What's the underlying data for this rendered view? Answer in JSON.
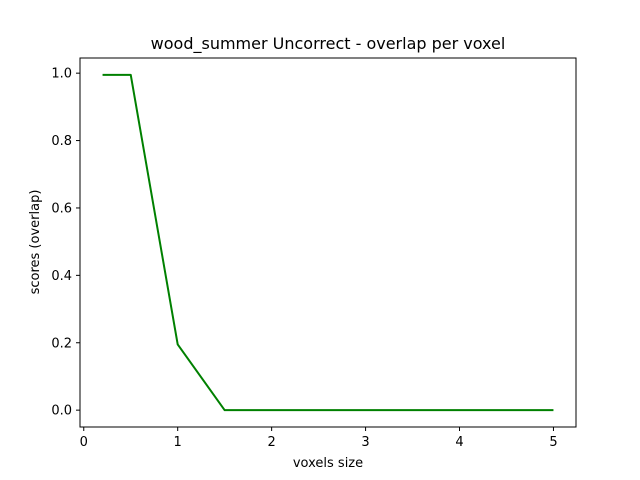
{
  "chart_data": {
    "type": "line",
    "title": "wood_summer Uncorrect - overlap per voxel",
    "xlabel": "voxels size",
    "ylabel": "scores (overlap)",
    "xlim": [
      -0.04,
      5.24
    ],
    "ylim": [
      -0.05,
      1.045
    ],
    "xticks": [
      0,
      1,
      2,
      3,
      4,
      5
    ],
    "yticks": [
      0.0,
      0.2,
      0.4,
      0.6,
      0.8,
      1.0
    ],
    "xtick_labels": [
      "0",
      "1",
      "2",
      "3",
      "4",
      "5"
    ],
    "ytick_labels": [
      "0.0",
      "0.2",
      "0.4",
      "0.6",
      "0.8",
      "1.0"
    ],
    "grid": false,
    "series": [
      {
        "color": "#008000",
        "x": [
          0.2,
          0.5,
          1.0,
          1.5,
          2.0,
          2.5,
          3.0,
          3.5,
          4.0,
          4.5,
          5.0
        ],
        "y": [
          0.995,
          0.995,
          0.195,
          0.0,
          0.0,
          0.0,
          0.0,
          0.0,
          0.0,
          0.0,
          0.0
        ]
      }
    ]
  }
}
